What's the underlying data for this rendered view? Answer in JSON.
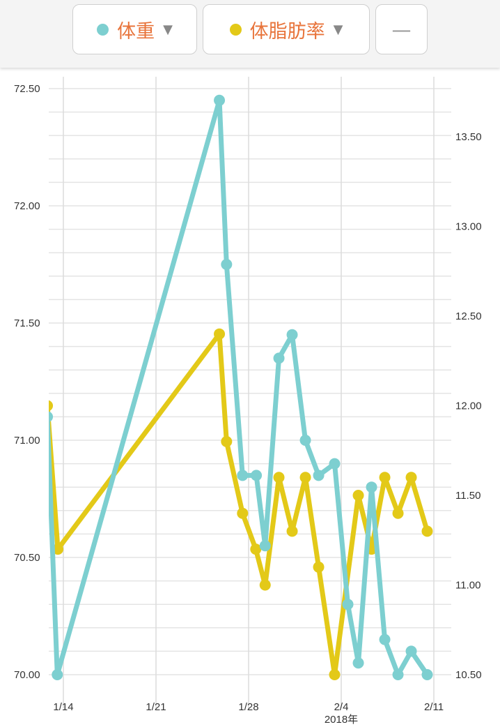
{
  "header": {
    "series_buttons": [
      {
        "label": "体重",
        "color": "#7dcfd0",
        "caret": "▼"
      },
      {
        "label": "体脂肪率",
        "color": "#e3c918",
        "caret": "▼"
      }
    ],
    "extra_button": {
      "label": "—"
    }
  },
  "chart_data": {
    "type": "line",
    "grid": true,
    "x_axis": {
      "type": "date",
      "range": [
        "2018-01-12T19:00",
        "2018-02-11T12:00"
      ],
      "ticks": [
        {
          "date": "2018-01-14",
          "label": "1/14"
        },
        {
          "date": "2018-01-21",
          "label": "1/21"
        },
        {
          "date": "2018-01-28",
          "label": "1/28"
        },
        {
          "date": "2018-02-04",
          "label": "2/4"
        },
        {
          "date": "2018-02-11",
          "label": "2/11"
        }
      ],
      "year_label": "2018年"
    },
    "y_left": {
      "range": [
        70.0,
        72.5
      ],
      "ticks": [
        "70.00",
        "70.50",
        "71.00",
        "71.50",
        "72.00",
        "72.50"
      ],
      "minor_step": 0.1
    },
    "y_right": {
      "range": [
        10.5,
        13.5
      ],
      "ticks": [
        "10.50",
        "11.00",
        "11.50",
        "12.00",
        "12.50",
        "13.00",
        "13.50"
      ]
    },
    "series": [
      {
        "name": "体重",
        "axis": "left",
        "color": "#7dcfd0",
        "points": [
          [
            "2018-01-12T19:00",
            71.1
          ],
          [
            "2018-01-13T13:00",
            70.0
          ],
          [
            "2018-01-25T19:00",
            72.45
          ],
          [
            "2018-01-26T08:00",
            71.75
          ],
          [
            "2018-01-27T13:00",
            70.85
          ],
          [
            "2018-01-28T14:00",
            70.85
          ],
          [
            "2018-01-29T06:00",
            70.55
          ],
          [
            "2018-01-30T07:00",
            71.35
          ],
          [
            "2018-01-31T07:00",
            71.45
          ],
          [
            "2018-02-01T07:00",
            71.0
          ],
          [
            "2018-02-02T07:00",
            70.85
          ],
          [
            "2018-02-03T12:00",
            70.9
          ],
          [
            "2018-02-04T12:00",
            70.3
          ],
          [
            "2018-02-05T07:00",
            70.05
          ],
          [
            "2018-02-06T07:00",
            70.8
          ],
          [
            "2018-02-07T07:00",
            70.15
          ],
          [
            "2018-02-08T07:00",
            70.0
          ],
          [
            "2018-02-09T07:00",
            70.1
          ],
          [
            "2018-02-10T12:00",
            70.0
          ]
        ]
      },
      {
        "name": "体脂肪率",
        "axis": "right",
        "color": "#e3c918",
        "points": [
          [
            "2018-01-12T19:00",
            12.0
          ],
          [
            "2018-01-13T14:00",
            11.2
          ],
          [
            "2018-01-25T19:00",
            12.4
          ],
          [
            "2018-01-26T08:00",
            11.8
          ],
          [
            "2018-01-27T13:00",
            11.4
          ],
          [
            "2018-01-28T13:00",
            11.2
          ],
          [
            "2018-01-29T06:00",
            11.0
          ],
          [
            "2018-01-30T07:00",
            11.6
          ],
          [
            "2018-01-31T07:00",
            11.3
          ],
          [
            "2018-02-01T07:00",
            11.6
          ],
          [
            "2018-02-02T07:00",
            11.1
          ],
          [
            "2018-02-03T12:00",
            10.5
          ],
          [
            "2018-02-05T07:00",
            11.5
          ],
          [
            "2018-02-06T07:00",
            11.2
          ],
          [
            "2018-02-07T07:00",
            11.6
          ],
          [
            "2018-02-08T07:00",
            11.4
          ],
          [
            "2018-02-09T07:00",
            11.6
          ],
          [
            "2018-02-10T12:00",
            11.3
          ]
        ]
      }
    ]
  }
}
